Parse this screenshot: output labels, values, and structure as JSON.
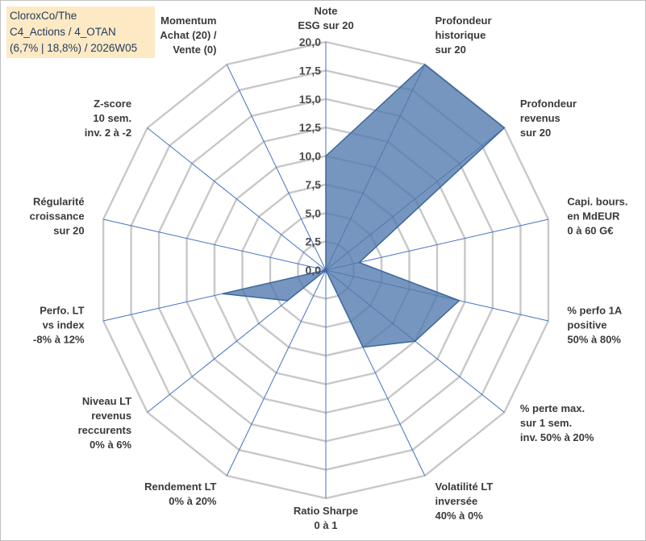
{
  "title": {
    "lines": [
      "CloroxCo/The",
      "C4_Actions / 4_OTAN",
      "(6,7% | 18,8%) / 2026W05"
    ]
  },
  "colors": {
    "fill": "#4f79ad",
    "stroke": "#3c679b",
    "grid": "#c8c8c8",
    "spoke": "#4472c4",
    "title_bg": "#fde9c4"
  },
  "chart_data": {
    "type": "radar",
    "r_min": 0,
    "r_max": 20,
    "ring_step": 2.5,
    "tick_labels": [
      "0,0",
      "2,5",
      "5,0",
      "7,5",
      "10,0",
      "12,5",
      "15,0",
      "17,5",
      "20,0"
    ],
    "axes": [
      {
        "label": [
          "Note",
          "ESG sur 20"
        ],
        "value": 10
      },
      {
        "label": [
          "Profondeur",
          "historique",
          "sur 20"
        ],
        "value": 20
      },
      {
        "label": [
          "Profondeur",
          "revenus",
          "sur 20"
        ],
        "value": 20
      },
      {
        "label": [
          "Capi. bours.",
          "en MdEUR",
          "0 à 60 G€"
        ],
        "value": 3
      },
      {
        "label": [
          "% perfo 1A",
          "positive",
          "50% à 80%"
        ],
        "value": 12
      },
      {
        "label": [
          "% perte max.",
          "sur 1 sem.",
          "inv. 50% à 20%"
        ],
        "value": 10
      },
      {
        "label": [
          "Volatilité LT",
          "inversée",
          "40% à 0%"
        ],
        "value": 7.5
      },
      {
        "label": [
          "Ratio Sharpe",
          "0 à 1"
        ],
        "value": 0
      },
      {
        "label": [
          "Rendement LT",
          "0% à 20%"
        ],
        "value": 0
      },
      {
        "label": [
          "Niveau LT",
          "revenus",
          "reccurents",
          "0% à 6%"
        ],
        "value": 4.3
      },
      {
        "label": [
          "Perfo. LT",
          "vs index",
          "-8% à 12%"
        ],
        "value": 9.3
      },
      {
        "label": [
          "Régularité",
          "croissance",
          "sur 20"
        ],
        "value": 0
      },
      {
        "label": [
          "Z-score",
          "10 sem.",
          "inv. 2 à -2"
        ],
        "value": 0
      },
      {
        "label": [
          "Momentum",
          "Achat (20) /",
          "Vente (0)"
        ],
        "value": 0
      }
    ]
  }
}
